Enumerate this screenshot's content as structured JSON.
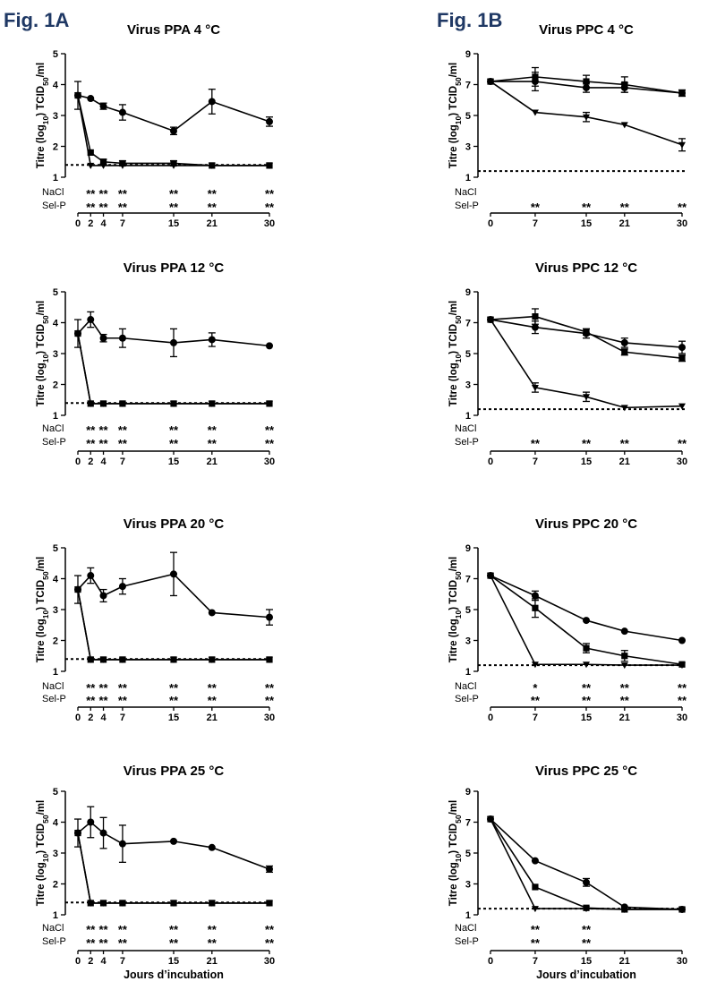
{
  "figure": {
    "fig_labels": [
      "Fig. 1A",
      "Fig. 1B"
    ],
    "xlabel": "Jours d’incubation",
    "ylabel_prefix": "Titre (log",
    "ylabel_sub10": "10",
    "ylabel_mid": ") TCID",
    "ylabel_sub50": "50",
    "ylabel_suffix": "/ml",
    "row_labels": [
      "NaCl",
      "Sel-P"
    ]
  },
  "chart_data": [
    {
      "type": "line",
      "title": "Virus PPA  4 °C",
      "x_ticks": [
        0,
        2,
        4,
        7,
        15,
        21,
        30
      ],
      "ylim": [
        1,
        5
      ],
      "y_ticks": [
        1,
        2,
        3,
        4,
        5
      ],
      "detection_limit": 1.4,
      "series": [
        {
          "marker": "circle",
          "x": [
            0,
            2,
            4,
            7,
            15,
            21,
            30
          ],
          "y": [
            3.65,
            3.55,
            3.3,
            3.1,
            2.5,
            3.45,
            2.8
          ],
          "err": [
            0.45,
            0.0,
            0.1,
            0.25,
            0.12,
            0.4,
            0.15
          ]
        },
        {
          "marker": "square",
          "x": [
            0,
            2,
            4,
            7,
            15,
            21,
            30
          ],
          "y": [
            3.65,
            1.8,
            1.5,
            1.45,
            1.45,
            1.38,
            1.38
          ],
          "err": [
            0,
            0,
            0.08,
            0.08,
            0.08,
            0,
            0
          ]
        },
        {
          "marker": "triangle",
          "x": [
            0,
            2,
            4,
            7,
            15,
            21,
            30
          ],
          "y": [
            3.65,
            1.38,
            1.38,
            1.38,
            1.38,
            1.38,
            1.38
          ],
          "err": [
            0,
            0,
            0,
            0,
            0,
            0,
            0
          ]
        }
      ],
      "significance": {
        "NaCl": [
          {
            "x": 2,
            "s": "**"
          },
          {
            "x": 4,
            "s": "**"
          },
          {
            "x": 7,
            "s": "**"
          },
          {
            "x": 15,
            "s": "**"
          },
          {
            "x": 21,
            "s": "**"
          },
          {
            "x": 30,
            "s": "**"
          }
        ],
        "Sel-P": [
          {
            "x": 2,
            "s": "**"
          },
          {
            "x": 4,
            "s": "**"
          },
          {
            "x": 7,
            "s": "**"
          },
          {
            "x": 15,
            "s": "**"
          },
          {
            "x": 21,
            "s": "**"
          },
          {
            "x": 30,
            "s": "**"
          }
        ]
      }
    },
    {
      "type": "line",
      "title": "Virus PPC  4 °C",
      "x_ticks": [
        0,
        7,
        15,
        21,
        30
      ],
      "ylim": [
        1,
        9
      ],
      "y_ticks": [
        1,
        3,
        5,
        7,
        9
      ],
      "detection_limit": 1.4,
      "series": [
        {
          "marker": "circle",
          "x": [
            0,
            7,
            15,
            21,
            30
          ],
          "y": [
            7.2,
            7.2,
            6.8,
            6.8,
            6.45
          ],
          "err": [
            0,
            0.6,
            0.3,
            0.3,
            0.2
          ]
        },
        {
          "marker": "square",
          "x": [
            0,
            7,
            15,
            21,
            30
          ],
          "y": [
            7.2,
            7.5,
            7.2,
            7.0,
            6.45
          ],
          "err": [
            0,
            0.6,
            0.4,
            0.5,
            0.2
          ]
        },
        {
          "marker": "triangle",
          "x": [
            0,
            7,
            15,
            21,
            30
          ],
          "y": [
            7.2,
            5.2,
            4.9,
            4.4,
            3.1
          ],
          "err": [
            0,
            0,
            0.3,
            0,
            0.4
          ]
        }
      ],
      "significance": {
        "NaCl": [],
        "Sel-P": [
          {
            "x": 7,
            "s": "**"
          },
          {
            "x": 15,
            "s": "**"
          },
          {
            "x": 21,
            "s": "**"
          },
          {
            "x": 30,
            "s": "**"
          }
        ]
      }
    },
    {
      "type": "line",
      "title": "Virus PPA  12 °C",
      "x_ticks": [
        0,
        2,
        4,
        7,
        15,
        21,
        30
      ],
      "ylim": [
        1,
        5
      ],
      "y_ticks": [
        1,
        2,
        3,
        4,
        5
      ],
      "detection_limit": 1.4,
      "series": [
        {
          "marker": "circle",
          "x": [
            0,
            2,
            4,
            7,
            15,
            21,
            30
          ],
          "y": [
            3.65,
            4.1,
            3.5,
            3.5,
            3.35,
            3.45,
            3.25
          ],
          "err": [
            0.45,
            0.25,
            0.12,
            0.3,
            0.45,
            0.22,
            0
          ]
        },
        {
          "marker": "square",
          "x": [
            0,
            2,
            4,
            7,
            15,
            21,
            30
          ],
          "y": [
            3.65,
            1.38,
            1.38,
            1.38,
            1.38,
            1.38,
            1.38
          ],
          "err": [
            0,
            0,
            0,
            0,
            0,
            0,
            0
          ]
        },
        {
          "marker": "triangle",
          "x": [
            0,
            2,
            4,
            7,
            15,
            21,
            30
          ],
          "y": [
            3.65,
            1.38,
            1.38,
            1.38,
            1.38,
            1.38,
            1.38
          ],
          "err": [
            0,
            0,
            0,
            0,
            0,
            0,
            0
          ]
        }
      ],
      "significance": {
        "NaCl": [
          {
            "x": 2,
            "s": "**"
          },
          {
            "x": 4,
            "s": "**"
          },
          {
            "x": 7,
            "s": "**"
          },
          {
            "x": 15,
            "s": "**"
          },
          {
            "x": 21,
            "s": "**"
          },
          {
            "x": 30,
            "s": "**"
          }
        ],
        "Sel-P": [
          {
            "x": 2,
            "s": "**"
          },
          {
            "x": 4,
            "s": "**"
          },
          {
            "x": 7,
            "s": "**"
          },
          {
            "x": 15,
            "s": "**"
          },
          {
            "x": 21,
            "s": "**"
          },
          {
            "x": 30,
            "s": "**"
          }
        ]
      }
    },
    {
      "type": "line",
      "title": "Virus PPC  12 °C",
      "x_ticks": [
        0,
        7,
        15,
        21,
        30
      ],
      "ylim": [
        1,
        9
      ],
      "y_ticks": [
        1,
        3,
        5,
        7,
        9
      ],
      "detection_limit": 1.4,
      "series": [
        {
          "marker": "circle",
          "x": [
            0,
            7,
            15,
            21,
            30
          ],
          "y": [
            7.2,
            6.7,
            6.3,
            5.7,
            5.4
          ],
          "err": [
            0,
            0.4,
            0.3,
            0.3,
            0.4
          ]
        },
        {
          "marker": "square",
          "x": [
            0,
            7,
            15,
            21,
            30
          ],
          "y": [
            7.2,
            7.4,
            6.4,
            5.1,
            4.7
          ],
          "err": [
            0,
            0.5,
            0.2,
            0.2,
            0.2
          ]
        },
        {
          "marker": "triangle",
          "x": [
            0,
            7,
            15,
            21,
            30
          ],
          "y": [
            7.2,
            2.8,
            2.2,
            1.5,
            1.6
          ],
          "err": [
            0,
            0.3,
            0.3,
            0,
            0
          ]
        }
      ],
      "significance": {
        "NaCl": [],
        "Sel-P": [
          {
            "x": 7,
            "s": "**"
          },
          {
            "x": 15,
            "s": "**"
          },
          {
            "x": 21,
            "s": "**"
          },
          {
            "x": 30,
            "s": "**"
          }
        ]
      }
    },
    {
      "type": "line",
      "title": "Virus PPA  20 °C",
      "x_ticks": [
        0,
        2,
        4,
        7,
        15,
        21,
        30
      ],
      "ylim": [
        1,
        5
      ],
      "y_ticks": [
        1,
        2,
        3,
        4,
        5
      ],
      "detection_limit": 1.4,
      "series": [
        {
          "marker": "circle",
          "x": [
            0,
            2,
            4,
            7,
            15,
            21,
            30
          ],
          "y": [
            3.65,
            4.1,
            3.45,
            3.75,
            4.15,
            2.9,
            2.75
          ],
          "err": [
            0.45,
            0.25,
            0.2,
            0.25,
            0.7,
            0,
            0.25
          ]
        },
        {
          "marker": "square",
          "x": [
            0,
            2,
            4,
            7,
            15,
            21,
            30
          ],
          "y": [
            3.65,
            1.38,
            1.38,
            1.38,
            1.38,
            1.38,
            1.38
          ],
          "err": [
            0,
            0,
            0,
            0,
            0,
            0,
            0
          ]
        },
        {
          "marker": "triangle",
          "x": [
            0,
            2,
            4,
            7,
            15,
            21,
            30
          ],
          "y": [
            3.65,
            1.38,
            1.38,
            1.38,
            1.38,
            1.38,
            1.38
          ],
          "err": [
            0,
            0,
            0,
            0,
            0,
            0,
            0
          ]
        }
      ],
      "significance": {
        "NaCl": [
          {
            "x": 2,
            "s": "**"
          },
          {
            "x": 4,
            "s": "**"
          },
          {
            "x": 7,
            "s": "**"
          },
          {
            "x": 15,
            "s": "**"
          },
          {
            "x": 21,
            "s": "**"
          },
          {
            "x": 30,
            "s": "**"
          }
        ],
        "Sel-P": [
          {
            "x": 2,
            "s": "**"
          },
          {
            "x": 4,
            "s": "**"
          },
          {
            "x": 7,
            "s": "**"
          },
          {
            "x": 15,
            "s": "**"
          },
          {
            "x": 21,
            "s": "**"
          },
          {
            "x": 30,
            "s": "**"
          }
        ]
      }
    },
    {
      "type": "line",
      "title": "Virus PPC  20 °C",
      "x_ticks": [
        0,
        7,
        15,
        21,
        30
      ],
      "ylim": [
        1,
        9
      ],
      "y_ticks": [
        1,
        3,
        5,
        7,
        9
      ],
      "detection_limit": 1.4,
      "series": [
        {
          "marker": "circle",
          "x": [
            0,
            7,
            15,
            21,
            30
          ],
          "y": [
            7.2,
            5.9,
            4.3,
            3.6,
            3.0
          ],
          "err": [
            0,
            0.3,
            0,
            0,
            0
          ]
        },
        {
          "marker": "square",
          "x": [
            0,
            7,
            15,
            21,
            30
          ],
          "y": [
            7.2,
            5.1,
            2.5,
            2.0,
            1.45
          ],
          "err": [
            0,
            0.6,
            0.3,
            0.35,
            0
          ]
        },
        {
          "marker": "triangle",
          "x": [
            0,
            7,
            15,
            21,
            30
          ],
          "y": [
            7.2,
            1.45,
            1.45,
            1.4,
            1.4
          ],
          "err": [
            0,
            0,
            0,
            0,
            0
          ]
        }
      ],
      "significance": {
        "NaCl": [
          {
            "x": 7,
            "s": "*"
          },
          {
            "x": 15,
            "s": "**"
          },
          {
            "x": 21,
            "s": "**"
          },
          {
            "x": 30,
            "s": "**"
          }
        ],
        "Sel-P": [
          {
            "x": 7,
            "s": "**"
          },
          {
            "x": 15,
            "s": "**"
          },
          {
            "x": 21,
            "s": "**"
          },
          {
            "x": 30,
            "s": "**"
          }
        ]
      }
    },
    {
      "type": "line",
      "title": "Virus PPA  25 °C",
      "x_ticks": [
        0,
        2,
        4,
        7,
        15,
        21,
        30
      ],
      "ylim": [
        1,
        5
      ],
      "y_ticks": [
        1,
        2,
        3,
        4,
        5
      ],
      "detection_limit": 1.4,
      "series": [
        {
          "marker": "circle",
          "x": [
            0,
            2,
            4,
            7,
            15,
            21,
            30
          ],
          "y": [
            3.65,
            4.0,
            3.65,
            3.3,
            3.38,
            3.18,
            2.48
          ],
          "err": [
            0.45,
            0.5,
            0.5,
            0.6,
            0,
            0,
            0.1
          ]
        },
        {
          "marker": "square",
          "x": [
            0,
            2,
            4,
            7,
            15,
            21,
            30
          ],
          "y": [
            3.65,
            1.38,
            1.38,
            1.38,
            1.38,
            1.38,
            1.38
          ],
          "err": [
            0,
            0,
            0,
            0,
            0,
            0,
            0
          ]
        },
        {
          "marker": "triangle",
          "x": [
            0,
            2,
            4,
            7,
            15,
            21,
            30
          ],
          "y": [
            3.65,
            1.38,
            1.38,
            1.38,
            1.38,
            1.38,
            1.38
          ],
          "err": [
            0,
            0,
            0,
            0,
            0,
            0,
            0
          ]
        }
      ],
      "significance": {
        "NaCl": [
          {
            "x": 2,
            "s": "**"
          },
          {
            "x": 4,
            "s": "**"
          },
          {
            "x": 7,
            "s": "**"
          },
          {
            "x": 15,
            "s": "**"
          },
          {
            "x": 21,
            "s": "**"
          },
          {
            "x": 30,
            "s": "**"
          }
        ],
        "Sel-P": [
          {
            "x": 2,
            "s": "**"
          },
          {
            "x": 4,
            "s": "**"
          },
          {
            "x": 7,
            "s": "**"
          },
          {
            "x": 15,
            "s": "**"
          },
          {
            "x": 21,
            "s": "**"
          },
          {
            "x": 30,
            "s": "**"
          }
        ]
      }
    },
    {
      "type": "line",
      "title": "Virus PPC  25 °C",
      "x_ticks": [
        0,
        7,
        15,
        21,
        30
      ],
      "ylim": [
        1,
        9
      ],
      "y_ticks": [
        1,
        3,
        5,
        7,
        9
      ],
      "detection_limit": 1.4,
      "series": [
        {
          "marker": "circle",
          "x": [
            0,
            7,
            15,
            21,
            30
          ],
          "y": [
            7.2,
            4.5,
            3.1,
            1.5,
            1.35
          ],
          "err": [
            0,
            0,
            0.25,
            0,
            0
          ]
        },
        {
          "marker": "square",
          "x": [
            0,
            7,
            15,
            21,
            30
          ],
          "y": [
            7.2,
            2.8,
            1.45,
            1.35,
            1.35
          ],
          "err": [
            0,
            0,
            0,
            0,
            0
          ]
        },
        {
          "marker": "triangle",
          "x": [
            0,
            7,
            15,
            21,
            30
          ],
          "y": [
            7.2,
            1.4,
            1.4,
            1.35,
            1.35
          ],
          "err": [
            0,
            0,
            0,
            0,
            0
          ]
        }
      ],
      "significance": {
        "NaCl": [
          {
            "x": 7,
            "s": "**"
          },
          {
            "x": 15,
            "s": "**"
          }
        ],
        "Sel-P": [
          {
            "x": 7,
            "s": "**"
          },
          {
            "x": 15,
            "s": "**"
          }
        ]
      }
    }
  ]
}
